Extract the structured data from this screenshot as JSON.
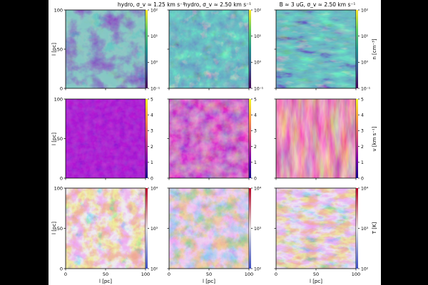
{
  "figure": {
    "columns": [
      {
        "title": "hydro, σ_v ≈ 1.25 km s⁻¹"
      },
      {
        "title": "hydro, σ_v ≈ 2.50 km s⁻¹"
      },
      {
        "title": "B ≈ 3 uG, σ_v ≈ 2.50 km s⁻¹"
      }
    ],
    "rows": [
      {
        "quantity": "n",
        "colorbar_label": "n [cm⁻³]",
        "colormap": "viridis",
        "scale": "log",
        "cbar_ticks": [
          "10⁻¹",
          "10⁰",
          "10¹",
          "10²"
        ]
      },
      {
        "quantity": "v",
        "colorbar_label": "v [km s⁻¹]",
        "colormap": "plasma",
        "scale": "linear",
        "cbar_ticks": [
          "0",
          "1",
          "2",
          "3",
          "4",
          "5"
        ]
      },
      {
        "quantity": "T",
        "colorbar_label": "T [K]",
        "colormap": "coolwarm",
        "scale": "log",
        "cbar_ticks": [
          "10²",
          "10³",
          "10⁴"
        ]
      }
    ],
    "x_ticks": [
      "0",
      "50",
      "100"
    ],
    "y_ticks": [
      "0",
      "50",
      "100"
    ]
  },
  "chart_data": {
    "type": "heatmap",
    "layout": "3x3 grid of 2D maps",
    "column_titles": [
      "hydro, σ_v ≈ 1.25 km s⁻¹",
      "hydro, σ_v ≈ 2.50 km s⁻¹",
      "B ≈ 3 uG, σ_v ≈ 2.50 km s⁻¹"
    ],
    "xlabel": "l [pc]",
    "ylabel": "l [pc]",
    "xlim": [
      0,
      100
    ],
    "ylim": [
      0,
      100
    ],
    "panels": [
      {
        "row": 0,
        "col": 0,
        "quantity": "n",
        "colormap": "viridis",
        "clim": [
          0.1,
          100
        ],
        "scale": "log",
        "dominant_level": "low, patchy"
      },
      {
        "row": 0,
        "col": 1,
        "quantity": "n",
        "colormap": "viridis",
        "clim": [
          0.1,
          100
        ],
        "scale": "log",
        "dominant_level": "filamentary, higher contrast"
      },
      {
        "row": 0,
        "col": 2,
        "quantity": "n",
        "colormap": "viridis",
        "clim": [
          0.1,
          100
        ],
        "scale": "log",
        "dominant_level": "elongated dense structures"
      },
      {
        "row": 1,
        "col": 0,
        "quantity": "v",
        "colormap": "plasma",
        "clim": [
          0,
          5
        ],
        "scale": "linear",
        "dominant_level": "≈1"
      },
      {
        "row": 1,
        "col": 1,
        "quantity": "v",
        "colormap": "plasma",
        "clim": [
          0,
          5
        ],
        "scale": "linear",
        "dominant_level": "≈2"
      },
      {
        "row": 1,
        "col": 2,
        "quantity": "v",
        "colormap": "plasma",
        "clim": [
          0,
          5
        ],
        "scale": "linear",
        "dominant_level": "≈2.5, streaky"
      },
      {
        "row": 2,
        "col": 0,
        "quantity": "T",
        "colormap": "coolwarm",
        "clim": [
          100,
          10000
        ],
        "scale": "log",
        "dominant_level": "mostly warm"
      },
      {
        "row": 2,
        "col": 1,
        "quantity": "T",
        "colormap": "coolwarm",
        "clim": [
          100,
          10000
        ],
        "scale": "log",
        "dominant_level": "warm with cold filaments"
      },
      {
        "row": 2,
        "col": 2,
        "quantity": "T",
        "colormap": "coolwarm",
        "clim": [
          100,
          10000
        ],
        "scale": "log",
        "dominant_level": "mixed warm/cold bands"
      }
    ],
    "colorbars": [
      {
        "row": 0,
        "label": "n [cm⁻³]",
        "range": [
          0.1,
          100
        ],
        "scale": "log"
      },
      {
        "row": 1,
        "label": "v [km s⁻¹]",
        "range": [
          0,
          5
        ],
        "scale": "linear"
      },
      {
        "row": 2,
        "label": "T [K]",
        "range": [
          100,
          10000
        ],
        "scale": "log"
      }
    ]
  }
}
